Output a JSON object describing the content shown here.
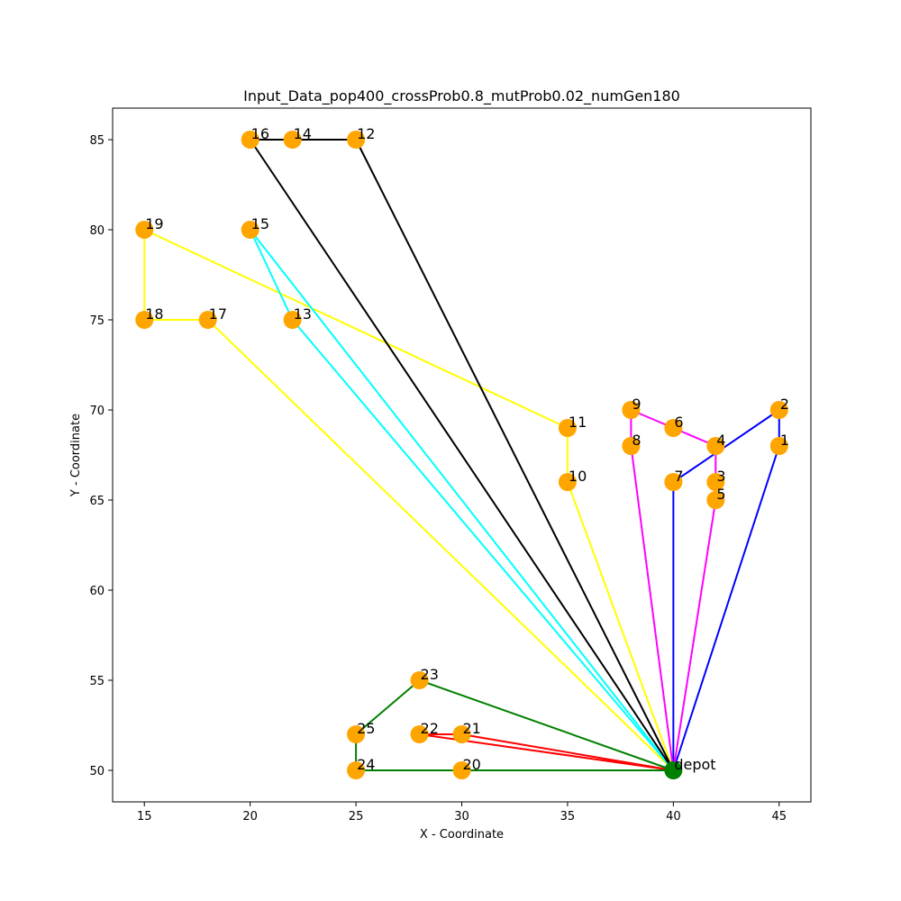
{
  "chart_data": {
    "type": "scatter",
    "title": "Input_Data_pop400_crossProb0.8_mutProb0.02_numGen180",
    "xlabel": "X - Coordinate",
    "ylabel": "Y - Coordinate",
    "xlim": [
      13.5,
      46.5
    ],
    "ylim": [
      48.25,
      86.75
    ],
    "xticks": [
      15,
      20,
      25,
      30,
      35,
      40,
      45
    ],
    "yticks": [
      50,
      55,
      60,
      65,
      70,
      75,
      80,
      85
    ],
    "grid": false,
    "depot": {
      "label": "depot",
      "x": 40,
      "y": 50,
      "color": "#008000"
    },
    "customer_color": "#FFA500",
    "nodes": [
      {
        "id": "1",
        "x": 45,
        "y": 68
      },
      {
        "id": "2",
        "x": 45,
        "y": 70
      },
      {
        "id": "3",
        "x": 42,
        "y": 66
      },
      {
        "id": "4",
        "x": 42,
        "y": 68
      },
      {
        "id": "5",
        "x": 42,
        "y": 65
      },
      {
        "id": "6",
        "x": 40,
        "y": 69
      },
      {
        "id": "7",
        "x": 40,
        "y": 66
      },
      {
        "id": "8",
        "x": 38,
        "y": 68
      },
      {
        "id": "9",
        "x": 38,
        "y": 70
      },
      {
        "id": "10",
        "x": 35,
        "y": 66
      },
      {
        "id": "11",
        "x": 35,
        "y": 69
      },
      {
        "id": "12",
        "x": 25,
        "y": 85
      },
      {
        "id": "13",
        "x": 22,
        "y": 75
      },
      {
        "id": "14",
        "x": 22,
        "y": 85
      },
      {
        "id": "15",
        "x": 20,
        "y": 80
      },
      {
        "id": "16",
        "x": 20,
        "y": 85
      },
      {
        "id": "17",
        "x": 18,
        "y": 75
      },
      {
        "id": "18",
        "x": 15,
        "y": 75
      },
      {
        "id": "19",
        "x": 15,
        "y": 80
      },
      {
        "id": "20",
        "x": 30,
        "y": 50
      },
      {
        "id": "21",
        "x": 30,
        "y": 52
      },
      {
        "id": "22",
        "x": 28,
        "y": 52
      },
      {
        "id": "23",
        "x": 28,
        "y": 55
      },
      {
        "id": "24",
        "x": 25,
        "y": 50
      },
      {
        "id": "25",
        "x": 25,
        "y": 52
      }
    ],
    "routes": [
      {
        "color": "#0000FF",
        "path": [
          "depot",
          "1",
          "2",
          "7",
          "depot"
        ]
      },
      {
        "color": "#FF00FF",
        "path": [
          "depot",
          "5",
          "3",
          "4",
          "6",
          "9",
          "8",
          "depot"
        ]
      },
      {
        "color": "#FFFF00",
        "path": [
          "depot",
          "10",
          "11",
          "19",
          "18",
          "17",
          "depot"
        ]
      },
      {
        "color": "#00FFFF",
        "path": [
          "depot",
          "13",
          "15",
          "depot"
        ]
      },
      {
        "color": "#000000",
        "path": [
          "depot",
          "12",
          "14",
          "16",
          "depot"
        ]
      },
      {
        "color": "#FF0000",
        "path": [
          "depot",
          "21",
          "22",
          "depot"
        ]
      },
      {
        "color": "#008000",
        "path": [
          "depot",
          "20",
          "24",
          "25",
          "23",
          "depot"
        ]
      }
    ]
  }
}
